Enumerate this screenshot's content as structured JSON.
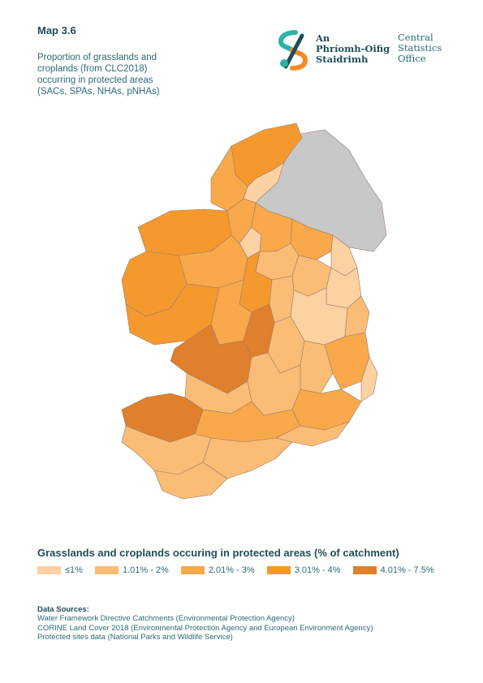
{
  "header": {
    "map_label": "Map 3.6",
    "subtitle": [
      "Proportion of grasslands and",
      "croplands (from CLC2018)",
      "occurring in protected areas",
      "(SACs, SPAs, NHAs, pNHAs)"
    ]
  },
  "logo": {
    "irish_lines": [
      "An",
      "Phríomh-Oifig",
      "Staidrimh"
    ],
    "english_lines": [
      "Central",
      "Statistics",
      "Office"
    ],
    "colors": {
      "teal": "#2bb3a6",
      "orange": "#f28c28",
      "navy": "#1f4e5a"
    }
  },
  "legend": {
    "title": "Grasslands and croplands occuring in protected areas (% of catchment)",
    "classes": [
      {
        "label": "≤1%",
        "color": "#fcd2a2"
      },
      {
        "label": "1.01% - 2%",
        "color": "#fbbd75"
      },
      {
        "label": "2.01% - 3%",
        "color": "#f9a94a"
      },
      {
        "label": "3.01% - 4%",
        "color": "#f5992e"
      },
      {
        "label": "4.01% - 7.5%",
        "color": "#e0802c"
      }
    ],
    "no_data_color": "#c8c8c8"
  },
  "sources": {
    "title": "Data Sources:",
    "lines": [
      "Water Framework Directive Catchments (Environmental Protection Agency)",
      "CORINE Land Cover 2018 (Environmental Protection Agency and European Environment Agency)",
      "Protected sites data (National Parks and Wildlife Service)"
    ]
  }
}
